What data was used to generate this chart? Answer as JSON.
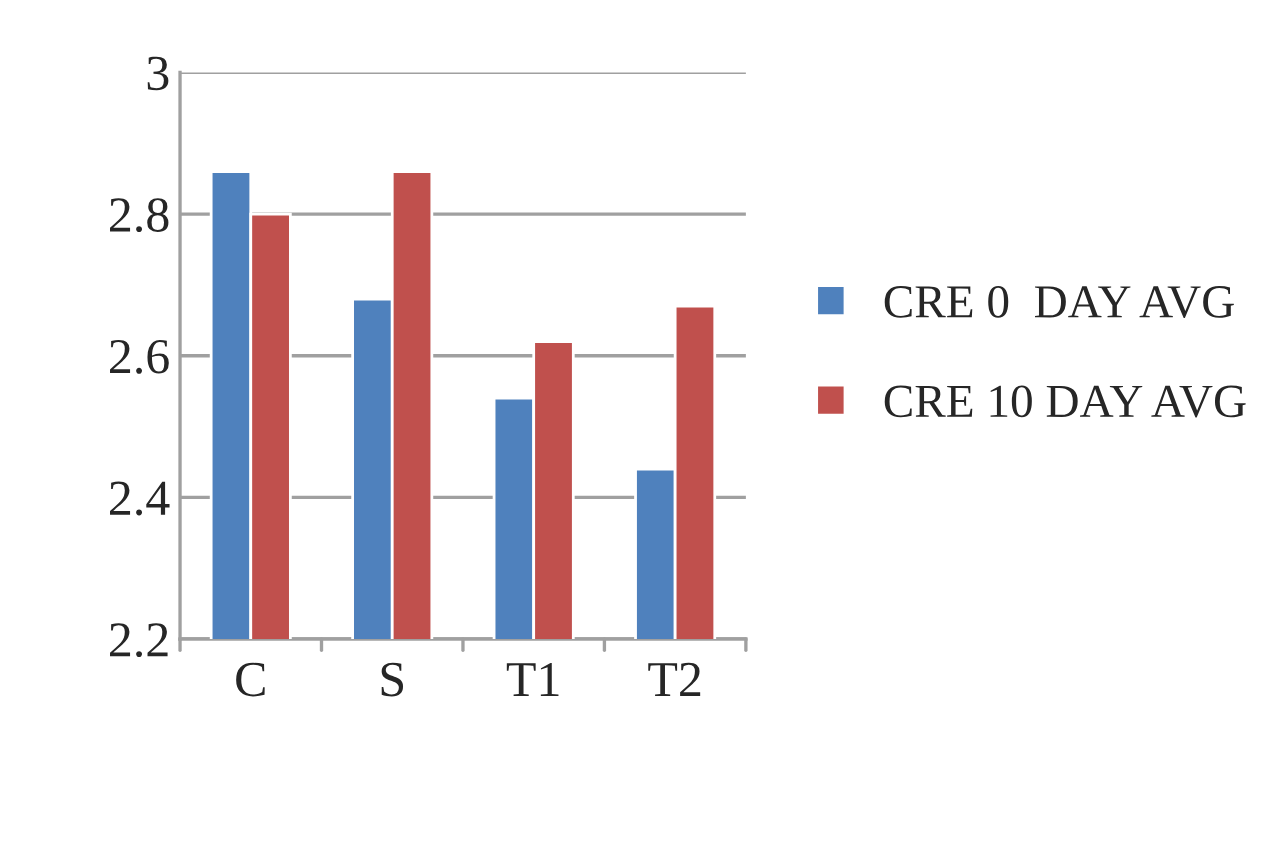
{
  "chart_data": {
    "type": "bar",
    "categories": [
      "C",
      "S",
      "T1",
      "T2"
    ],
    "series": [
      {
        "name": "CRE 0  DAY AVG",
        "color": "#4f81bd",
        "values": [
          2.86,
          2.68,
          2.54,
          2.44
        ]
      },
      {
        "name": "CRE 10 DAY AVG",
        "color": "#c0504d",
        "values": [
          2.8,
          2.86,
          2.62,
          2.67
        ]
      }
    ],
    "ylim": [
      2.2,
      3
    ],
    "yticks": [
      2.2,
      2.4,
      2.6,
      2.8,
      3
    ],
    "grid": "y",
    "legend": "right"
  }
}
